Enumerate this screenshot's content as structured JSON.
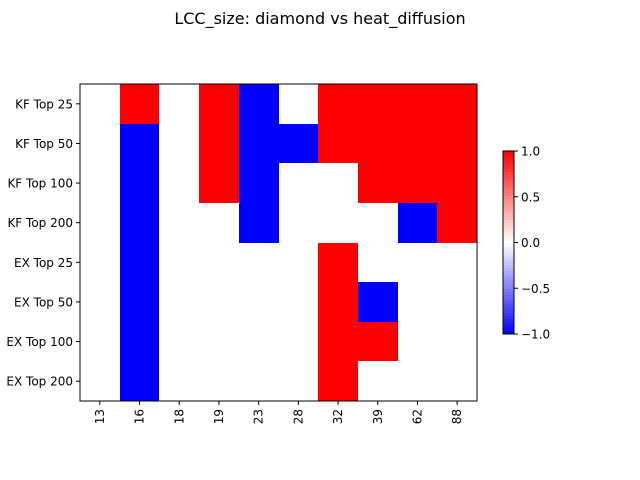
{
  "chart_data": {
    "type": "heatmap",
    "title": "LCC_size: diamond vs heat_diffusion",
    "xlabel": "",
    "ylabel": "",
    "x_categories": [
      "13",
      "16",
      "18",
      "19",
      "23",
      "28",
      "32",
      "39",
      "62",
      "88"
    ],
    "y_categories": [
      "KF Top 25",
      "KF Top 50",
      "KF Top 100",
      "KF Top 200",
      "EX Top 25",
      "EX Top 50",
      "EX Top 100",
      "EX Top 200"
    ],
    "values": [
      [
        0,
        1,
        0,
        1,
        -1,
        0,
        1,
        1,
        1,
        1
      ],
      [
        0,
        -1,
        0,
        1,
        -1,
        -1,
        1,
        1,
        1,
        1
      ],
      [
        0,
        -1,
        0,
        1,
        -1,
        0,
        0,
        1,
        1,
        1
      ],
      [
        0,
        -1,
        0,
        0,
        -1,
        0,
        0,
        0,
        -1,
        1
      ],
      [
        0,
        -1,
        0,
        0,
        0,
        0,
        1,
        0,
        0,
        0
      ],
      [
        0,
        -1,
        0,
        0,
        0,
        0,
        1,
        -1,
        0,
        0
      ],
      [
        0,
        -1,
        0,
        0,
        0,
        0,
        1,
        1,
        0,
        0
      ],
      [
        0,
        -1,
        0,
        0,
        0,
        0,
        1,
        0,
        0,
        0
      ]
    ],
    "colormap": "bwr",
    "vmin": -1.0,
    "vmax": 1.0,
    "colorbar_ticks": [
      "1.0",
      "0.5",
      "0.0",
      "−0.5",
      "−1.0"
    ],
    "colors": {
      "positive": "#ff0000",
      "zero": "#ffffff",
      "negative": "#0000ff"
    }
  }
}
